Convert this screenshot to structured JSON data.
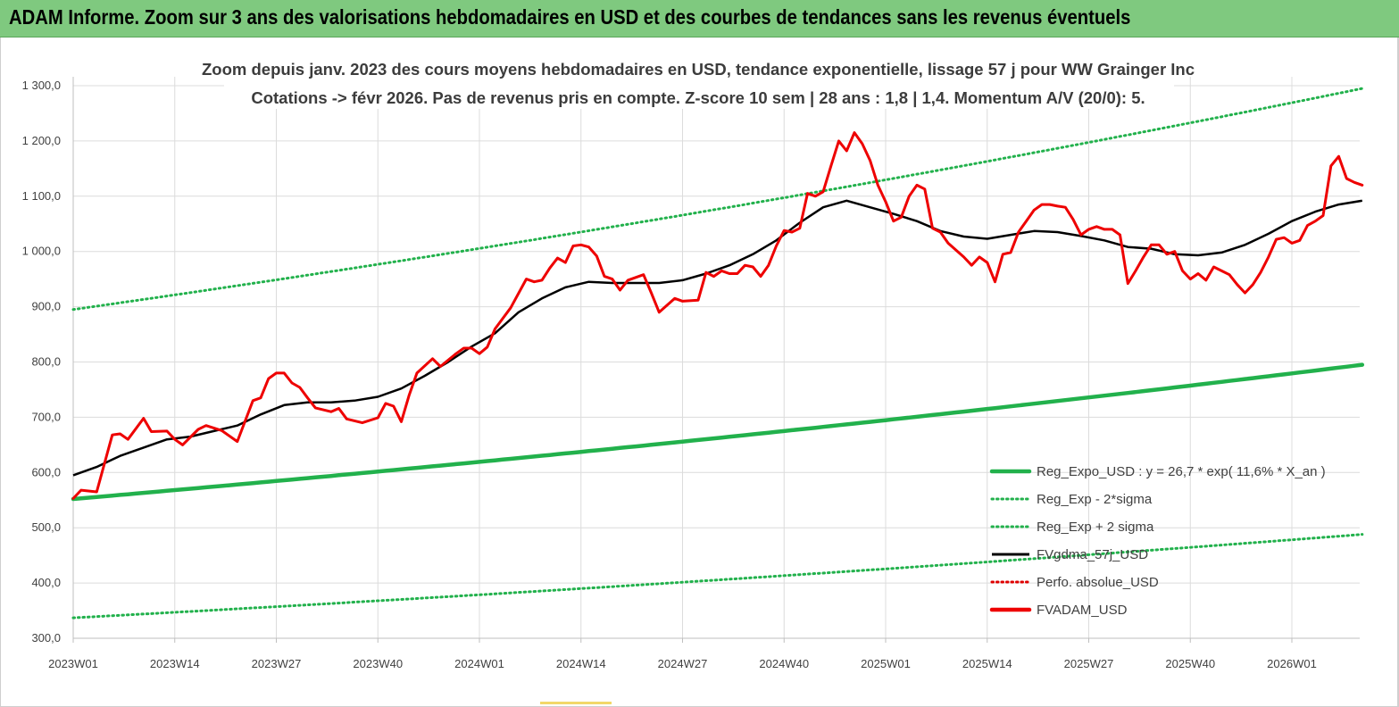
{
  "banner": {
    "title": "ADAM Informe. Zoom sur 3 ans des valorisations hebdomadaires en USD et des courbes de tendances sans les revenus éventuels",
    "color": "#7fc97f"
  },
  "chart_data": {
    "type": "line",
    "title": "Zoom depuis janv. 2023 des cours moyens hebdomadaires en USD, tendance exponentielle, lissage 57 j pour WW Grainger Inc",
    "subtitle": "Cotations -> févr 2026. Pas de revenus pris en compte. Z-score 10 sem | 28 ans : 1,8 | 1,4. Momentum A/V (20/0): 5.",
    "ylim": [
      300,
      1300
    ],
    "yticks": [
      "300,0",
      "400,0",
      "500,0",
      "600,0",
      "700,0",
      "800,0",
      "900,0",
      "1 000,0",
      "1 100,0",
      "1 200,0",
      "1 300,0"
    ],
    "ytick_values": [
      300,
      400,
      500,
      600,
      700,
      800,
      900,
      1000,
      1100,
      1200,
      1300
    ],
    "xticks": [
      "2023W01",
      "2023W14",
      "2023W27",
      "2023W40",
      "2024W01",
      "2024W14",
      "2024W27",
      "2024W40",
      "2025W01",
      "2025W14",
      "2025W27",
      "2025W40",
      "2026W01"
    ],
    "xtick_weeks": [
      0,
      13,
      26,
      39,
      52,
      65,
      78,
      91,
      104,
      117,
      130,
      143,
      156
    ],
    "x_max_week": 165,
    "grid": "vertical and horizontal",
    "legend_position": "bottom-right",
    "series": [
      {
        "name": "Reg_Expo_USD : y = 26,7 * exp( 11,6% * X_an )",
        "color": "#22b14c",
        "style": "solid-thick",
        "points": [
          [
            0,
            552
          ],
          [
            165,
            795
          ]
        ]
      },
      {
        "name": "Reg_Exp - 2*sigma",
        "color": "#22b14c",
        "style": "dotted",
        "points": [
          [
            0,
            337
          ],
          [
            165,
            488
          ]
        ]
      },
      {
        "name": "Reg_Exp + 2 sigma",
        "color": "#22b14c",
        "style": "dotted",
        "points": [
          [
            0,
            895
          ],
          [
            165,
            1295
          ]
        ]
      },
      {
        "name": "FVgdma_57j_USD",
        "color": "#000000",
        "style": "solid",
        "points": [
          [
            0,
            595
          ],
          [
            3,
            610
          ],
          [
            6,
            630
          ],
          [
            9,
            645
          ],
          [
            12,
            660
          ],
          [
            15,
            665
          ],
          [
            18,
            675
          ],
          [
            21,
            685
          ],
          [
            24,
            705
          ],
          [
            27,
            722
          ],
          [
            30,
            727
          ],
          [
            33,
            727
          ],
          [
            36,
            730
          ],
          [
            39,
            737
          ],
          [
            42,
            752
          ],
          [
            45,
            775
          ],
          [
            48,
            800
          ],
          [
            51,
            828
          ],
          [
            54,
            852
          ],
          [
            57,
            890
          ],
          [
            60,
            915
          ],
          [
            63,
            935
          ],
          [
            66,
            945
          ],
          [
            69,
            943
          ],
          [
            72,
            943
          ],
          [
            75,
            943
          ],
          [
            78,
            948
          ],
          [
            81,
            960
          ],
          [
            84,
            975
          ],
          [
            87,
            995
          ],
          [
            90,
            1020
          ],
          [
            93,
            1052
          ],
          [
            96,
            1080
          ],
          [
            99,
            1092
          ],
          [
            102,
            1080
          ],
          [
            105,
            1068
          ],
          [
            108,
            1055
          ],
          [
            111,
            1037
          ],
          [
            114,
            1027
          ],
          [
            117,
            1023
          ],
          [
            120,
            1030
          ],
          [
            123,
            1037
          ],
          [
            126,
            1035
          ],
          [
            129,
            1028
          ],
          [
            132,
            1020
          ],
          [
            135,
            1008
          ],
          [
            138,
            1005
          ],
          [
            141,
            995
          ],
          [
            144,
            993
          ],
          [
            147,
            998
          ],
          [
            150,
            1012
          ],
          [
            153,
            1032
          ],
          [
            156,
            1055
          ],
          [
            159,
            1072
          ],
          [
            162,
            1085
          ],
          [
            165,
            1092
          ]
        ]
      },
      {
        "name": "Perfo. absolue_USD",
        "color": "#e00000",
        "style": "dotted",
        "points": []
      },
      {
        "name": "FVADAM_USD",
        "color": "#ee0000",
        "style": "solid-thick",
        "points": [
          [
            0,
            553
          ],
          [
            1,
            568
          ],
          [
            3,
            565
          ],
          [
            5,
            668
          ],
          [
            6,
            670
          ],
          [
            7,
            660
          ],
          [
            9,
            698
          ],
          [
            10,
            674
          ],
          [
            12,
            675
          ],
          [
            13,
            660
          ],
          [
            14,
            650
          ],
          [
            16,
            678
          ],
          [
            17,
            685
          ],
          [
            19,
            676
          ],
          [
            21,
            656
          ],
          [
            23,
            730
          ],
          [
            24,
            735
          ],
          [
            25,
            770
          ],
          [
            26,
            780
          ],
          [
            27,
            780
          ],
          [
            28,
            762
          ],
          [
            29,
            754
          ],
          [
            30,
            735
          ],
          [
            31,
            717
          ],
          [
            33,
            710
          ],
          [
            34,
            716
          ],
          [
            35,
            697
          ],
          [
            37,
            690
          ],
          [
            39,
            699
          ],
          [
            40,
            725
          ],
          [
            41,
            720
          ],
          [
            42,
            692
          ],
          [
            43,
            740
          ],
          [
            44,
            780
          ],
          [
            46,
            806
          ],
          [
            47,
            792
          ],
          [
            49,
            815
          ],
          [
            50,
            825
          ],
          [
            51,
            825
          ],
          [
            52,
            815
          ],
          [
            53,
            827
          ],
          [
            54,
            860
          ],
          [
            56,
            898
          ],
          [
            58,
            950
          ],
          [
            59,
            945
          ],
          [
            60,
            948
          ],
          [
            61,
            970
          ],
          [
            62,
            988
          ],
          [
            63,
            980
          ],
          [
            64,
            1010
          ],
          [
            65,
            1012
          ],
          [
            66,
            1008
          ],
          [
            67,
            992
          ],
          [
            68,
            955
          ],
          [
            69,
            950
          ],
          [
            70,
            930
          ],
          [
            71,
            948
          ],
          [
            73,
            958
          ],
          [
            74,
            925
          ],
          [
            75,
            890
          ],
          [
            77,
            915
          ],
          [
            78,
            910
          ],
          [
            80,
            912
          ],
          [
            81,
            962
          ],
          [
            82,
            955
          ],
          [
            83,
            965
          ],
          [
            84,
            960
          ],
          [
            85,
            960
          ],
          [
            86,
            975
          ],
          [
            87,
            972
          ],
          [
            88,
            955
          ],
          [
            89,
            975
          ],
          [
            90,
            1010
          ],
          [
            91,
            1038
          ],
          [
            92,
            1035
          ],
          [
            93,
            1042
          ],
          [
            94,
            1105
          ],
          [
            95,
            1100
          ],
          [
            96,
            1108
          ],
          [
            97,
            1155
          ],
          [
            98,
            1200
          ],
          [
            99,
            1182
          ],
          [
            100,
            1215
          ],
          [
            101,
            1195
          ],
          [
            102,
            1165
          ],
          [
            103,
            1120
          ],
          [
            104,
            1090
          ],
          [
            105,
            1055
          ],
          [
            106,
            1062
          ],
          [
            107,
            1100
          ],
          [
            108,
            1120
          ],
          [
            109,
            1113
          ],
          [
            110,
            1042
          ],
          [
            111,
            1035
          ],
          [
            112,
            1015
          ],
          [
            114,
            990
          ],
          [
            115,
            975
          ],
          [
            116,
            990
          ],
          [
            117,
            980
          ],
          [
            118,
            945
          ],
          [
            119,
            995
          ],
          [
            120,
            998
          ],
          [
            121,
            1035
          ],
          [
            122,
            1055
          ],
          [
            123,
            1075
          ],
          [
            124,
            1085
          ],
          [
            125,
            1085
          ],
          [
            126,
            1082
          ],
          [
            127,
            1080
          ],
          [
            128,
            1058
          ],
          [
            129,
            1030
          ],
          [
            130,
            1040
          ],
          [
            131,
            1045
          ],
          [
            132,
            1040
          ],
          [
            133,
            1040
          ],
          [
            134,
            1030
          ],
          [
            135,
            942
          ],
          [
            136,
            965
          ],
          [
            137,
            990
          ],
          [
            138,
            1012
          ],
          [
            139,
            1012
          ],
          [
            140,
            995
          ],
          [
            141,
            1000
          ],
          [
            142,
            965
          ],
          [
            143,
            950
          ],
          [
            144,
            960
          ],
          [
            145,
            948
          ],
          [
            146,
            972
          ],
          [
            147,
            965
          ],
          [
            148,
            958
          ],
          [
            149,
            940
          ],
          [
            150,
            925
          ],
          [
            151,
            940
          ],
          [
            152,
            962
          ],
          [
            153,
            990
          ],
          [
            154,
            1022
          ],
          [
            155,
            1025
          ],
          [
            156,
            1015
          ],
          [
            157,
            1020
          ],
          [
            158,
            1047
          ],
          [
            159,
            1055
          ],
          [
            160,
            1065
          ],
          [
            161,
            1155
          ],
          [
            162,
            1172
          ],
          [
            163,
            1132
          ],
          [
            164,
            1125
          ],
          [
            165,
            1120
          ]
        ]
      }
    ]
  }
}
